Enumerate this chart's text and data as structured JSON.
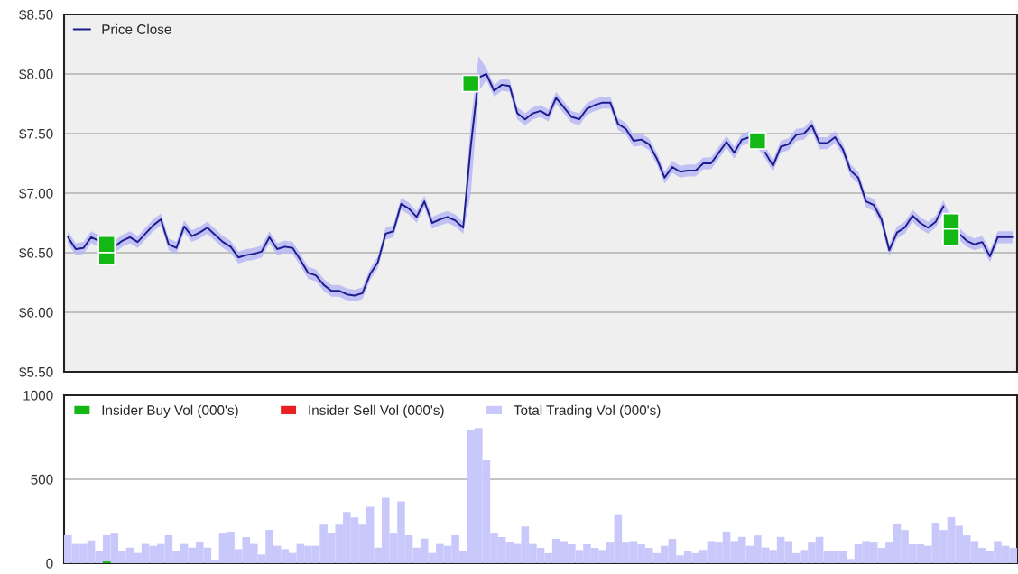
{
  "chart_data": [
    {
      "type": "line",
      "categories": [
        null,
        null,
        null,
        null,
        null,
        null,
        null,
        null,
        null,
        null,
        null,
        null,
        null,
        null,
        null,
        null,
        null,
        null,
        null,
        null,
        null,
        null,
        null,
        null,
        null,
        null,
        null,
        null,
        null,
        null,
        null,
        null,
        null,
        null,
        null,
        null,
        null,
        null,
        null,
        null,
        null,
        null,
        null,
        null,
        null,
        null,
        null,
        null,
        null,
        null,
        null,
        null,
        null,
        null,
        null,
        null,
        null,
        null,
        null,
        null,
        null,
        null,
        null,
        null,
        null,
        null,
        null,
        null,
        null,
        null,
        null,
        null,
        null,
        null,
        null,
        null,
        null,
        null,
        null,
        null,
        null,
        null,
        null,
        null,
        null,
        null,
        null,
        null,
        null,
        null,
        null,
        null,
        null,
        null,
        null,
        null,
        null,
        null,
        null,
        null,
        null,
        null,
        null,
        null,
        null,
        null,
        null,
        null,
        null,
        null,
        null,
        null,
        null,
        null,
        null,
        null,
        null,
        null,
        null,
        null,
        null,
        null,
        null
      ],
      "series": [
        {
          "name": "Price Close",
          "color": "#1c1c8c",
          "type": "line",
          "values": [
            6.63,
            6.53,
            6.54,
            6.63,
            6.6,
            null,
            6.55,
            6.6,
            6.63,
            6.59,
            6.66,
            6.73,
            6.78,
            6.57,
            6.54,
            6.72,
            6.64,
            6.67,
            6.71,
            6.65,
            6.59,
            6.55,
            6.46,
            6.48,
            6.49,
            6.51,
            6.63,
            6.53,
            6.55,
            6.54,
            6.44,
            6.33,
            6.31,
            6.23,
            6.18,
            6.18,
            6.15,
            6.14,
            6.16,
            6.32,
            6.42,
            6.66,
            6.68,
            6.91,
            6.87,
            6.8,
            6.93,
            6.75,
            6.78,
            6.8,
            6.77,
            6.71,
            7.4,
            7.97,
            8.0,
            7.86,
            7.91,
            7.9,
            7.67,
            7.62,
            7.67,
            7.69,
            7.65,
            7.8,
            7.72,
            7.64,
            7.62,
            7.71,
            7.74,
            7.76,
            7.76,
            7.58,
            7.54,
            7.44,
            7.45,
            7.41,
            7.29,
            7.13,
            7.22,
            7.18,
            7.19,
            7.19,
            7.25,
            7.25,
            7.34,
            7.43,
            7.34,
            7.45,
            7.47,
            null,
            7.34,
            7.23,
            7.39,
            7.41,
            7.49,
            7.5,
            7.57,
            7.42,
            7.42,
            7.47,
            7.37,
            7.19,
            7.13,
            6.93,
            6.9,
            6.78,
            6.52,
            6.67,
            6.71,
            6.81,
            6.75,
            6.71,
            6.76,
            6.89,
            null,
            6.66,
            6.6,
            6.57,
            6.59,
            6.47,
            6.63,
            6.63,
            6.63
          ],
          "upper": [
            6.68,
            6.58,
            6.59,
            6.68,
            6.65,
            6.6,
            6.6,
            6.65,
            6.68,
            6.64,
            6.71,
            6.78,
            6.83,
            6.62,
            6.59,
            6.77,
            6.69,
            6.72,
            6.76,
            6.7,
            6.64,
            6.6,
            6.51,
            6.53,
            6.54,
            6.56,
            6.68,
            6.58,
            6.6,
            6.59,
            6.49,
            6.38,
            6.36,
            6.28,
            6.23,
            6.23,
            6.2,
            6.19,
            6.21,
            6.37,
            6.47,
            6.71,
            6.73,
            6.96,
            6.92,
            6.85,
            6.98,
            6.8,
            6.83,
            6.85,
            6.82,
            6.76,
            7.6,
            8.15,
            8.05,
            7.91,
            7.96,
            7.95,
            7.72,
            7.67,
            7.72,
            7.74,
            7.7,
            7.85,
            7.77,
            7.69,
            7.67,
            7.76,
            7.79,
            7.81,
            7.81,
            7.63,
            7.59,
            7.49,
            7.5,
            7.46,
            7.34,
            7.18,
            7.27,
            7.23,
            7.24,
            7.24,
            7.3,
            7.3,
            7.39,
            7.48,
            7.39,
            7.5,
            7.52,
            7.48,
            7.39,
            7.28,
            7.44,
            7.46,
            7.54,
            7.55,
            7.62,
            7.47,
            7.47,
            7.52,
            7.42,
            7.24,
            7.18,
            6.98,
            6.95,
            6.83,
            6.57,
            6.72,
            6.76,
            6.86,
            6.8,
            6.76,
            6.81,
            6.94,
            6.79,
            6.71,
            6.65,
            6.62,
            6.64,
            6.52,
            6.68,
            6.68,
            6.68
          ],
          "lower": [
            6.58,
            6.48,
            6.49,
            6.58,
            6.55,
            6.5,
            6.5,
            6.55,
            6.58,
            6.54,
            6.61,
            6.68,
            6.73,
            6.52,
            6.49,
            6.67,
            6.59,
            6.62,
            6.66,
            6.6,
            6.54,
            6.5,
            6.41,
            6.43,
            6.44,
            6.46,
            6.58,
            6.48,
            6.5,
            6.49,
            6.39,
            6.28,
            6.26,
            6.18,
            6.13,
            6.13,
            6.1,
            6.09,
            6.11,
            6.27,
            6.37,
            6.61,
            6.63,
            6.86,
            6.82,
            6.75,
            6.88,
            6.7,
            6.73,
            6.75,
            6.72,
            6.66,
            7.0,
            7.85,
            7.95,
            7.81,
            7.86,
            7.85,
            7.62,
            7.57,
            7.62,
            7.64,
            7.6,
            7.75,
            7.67,
            7.59,
            7.57,
            7.66,
            7.69,
            7.71,
            7.71,
            7.53,
            7.49,
            7.39,
            7.4,
            7.36,
            7.24,
            7.08,
            7.17,
            7.13,
            7.14,
            7.14,
            7.2,
            7.2,
            7.29,
            7.38,
            7.29,
            7.4,
            7.42,
            7.38,
            7.29,
            7.18,
            7.34,
            7.36,
            7.44,
            7.45,
            7.52,
            7.37,
            7.37,
            7.42,
            7.32,
            7.14,
            7.08,
            6.88,
            6.85,
            6.73,
            6.47,
            6.62,
            6.66,
            6.76,
            6.7,
            6.66,
            6.71,
            6.84,
            6.69,
            6.61,
            6.55,
            6.52,
            6.54,
            6.42,
            6.58,
            6.58,
            6.58
          ]
        },
        {
          "type": "scatter",
          "marker": "square",
          "color": "#14b814",
          "values": [
            null,
            null,
            null,
            null,
            null,
            6.47,
            null,
            null,
            null,
            null,
            null,
            null,
            null,
            null,
            null,
            null,
            null,
            null,
            null,
            null,
            null,
            null,
            null,
            null,
            null,
            null,
            null,
            null,
            null,
            null,
            null,
            null,
            null,
            null,
            null,
            null,
            null,
            null,
            null,
            null,
            null,
            null,
            null,
            null,
            null,
            null,
            null,
            null,
            null,
            null,
            null,
            null,
            null,
            null,
            null,
            null,
            null,
            null,
            null,
            null,
            null,
            null,
            null,
            null,
            null,
            null,
            null,
            null,
            null,
            null,
            null,
            null,
            null,
            null,
            null,
            null,
            null,
            null,
            null,
            null,
            null,
            null,
            null,
            null,
            null,
            null,
            null,
            null,
            null,
            null,
            null,
            null,
            null,
            null,
            null,
            null,
            null,
            null,
            null,
            null,
            null,
            null,
            null,
            null,
            null,
            null,
            null,
            null,
            null,
            null,
            null,
            null,
            null,
            null,
            6.76,
            null,
            null,
            null,
            null,
            null,
            null,
            null,
            null
          ]
        },
        {
          "type": "scatter",
          "marker": "square",
          "color": "#14b814",
          "values": [
            null,
            null,
            null,
            null,
            null,
            6.57,
            null,
            null,
            null,
            null,
            null,
            null,
            null,
            null,
            null,
            null,
            null,
            null,
            null,
            null,
            null,
            null,
            null,
            null,
            null,
            null,
            null,
            null,
            null,
            null,
            null,
            null,
            null,
            null,
            null,
            null,
            null,
            null,
            null,
            null,
            null,
            null,
            null,
            null,
            null,
            null,
            null,
            null,
            null,
            null,
            null,
            null,
            7.92,
            null,
            null,
            null,
            null,
            null,
            null,
            null,
            null,
            null,
            null,
            null,
            null,
            null,
            null,
            null,
            null,
            null,
            null,
            null,
            null,
            null,
            null,
            null,
            null,
            null,
            null,
            null,
            null,
            null,
            null,
            null,
            null,
            null,
            null,
            null,
            null,
            7.44,
            null,
            null,
            null,
            null,
            null,
            null,
            null,
            null,
            null,
            null,
            null,
            null,
            null,
            null,
            null,
            null,
            null,
            null,
            null,
            null,
            null,
            null,
            null,
            null,
            6.63,
            null,
            null,
            null,
            null,
            null,
            null,
            null,
            null
          ]
        }
      ],
      "ylim": [
        5.5,
        8.5
      ],
      "yticks": [
        {
          "value": 5.5,
          "label": "$5.50"
        },
        {
          "value": 6.0,
          "label": "$6.00"
        },
        {
          "value": 6.5,
          "label": "$6.50"
        },
        {
          "value": 7.0,
          "label": "$7.00"
        },
        {
          "value": 7.5,
          "label": "$7.50"
        },
        {
          "value": 8.0,
          "label": "$8.00"
        },
        {
          "value": 8.5,
          "label": "$8.50"
        }
      ],
      "tick_labels": "y",
      "grid": "y",
      "legend": "top left"
    },
    {
      "type": "bar",
      "categories": [
        null,
        null,
        null,
        null,
        null,
        null,
        null,
        null,
        null,
        null,
        null,
        null,
        null,
        null,
        null,
        null,
        null,
        null,
        null,
        null,
        null,
        null,
        null,
        null,
        null,
        null,
        null,
        null,
        null,
        null,
        null,
        null,
        null,
        null,
        null,
        null,
        null,
        null,
        null,
        null,
        null,
        null,
        null,
        null,
        null,
        null,
        null,
        null,
        null,
        null,
        null,
        null,
        null,
        null,
        null,
        null,
        null,
        null,
        null,
        null,
        null,
        null,
        null,
        null,
        null,
        null,
        null,
        null,
        null,
        null,
        null,
        null,
        null,
        null,
        null,
        null,
        null,
        null,
        null,
        null,
        null,
        null,
        null,
        null,
        null,
        null,
        null,
        null,
        null,
        null,
        null,
        null,
        null,
        null,
        null,
        null,
        null,
        null,
        null,
        null,
        null,
        null,
        null,
        null,
        null,
        null,
        null,
        null,
        null,
        null,
        null,
        null,
        null,
        null,
        null,
        null,
        null,
        null,
        null,
        null,
        null,
        null,
        null
      ],
      "series": [
        {
          "name": "Insider Buy Vol (000's)",
          "color": "#14b814",
          "values": [
            0,
            0,
            0,
            0,
            0,
            10,
            0,
            0,
            0,
            0,
            0,
            0,
            0,
            0,
            0,
            0,
            0,
            0,
            0,
            0,
            0,
            0,
            0,
            0,
            0,
            0,
            0,
            0,
            0,
            0,
            0,
            0,
            0,
            0,
            0,
            0,
            0,
            0,
            0,
            0,
            0,
            0,
            0,
            0,
            0,
            0,
            0,
            0,
            0,
            0,
            0,
            0,
            0,
            0,
            0,
            0,
            0,
            0,
            0,
            0,
            0,
            0,
            0,
            0,
            0,
            0,
            0,
            0,
            0,
            0,
            0,
            0,
            0,
            0,
            0,
            0,
            0,
            0,
            0,
            0,
            0,
            0,
            0,
            0,
            0,
            0,
            0,
            0,
            0,
            0,
            0,
            0,
            0,
            0,
            0,
            0,
            0,
            0,
            0,
            0,
            0,
            0,
            0,
            0,
            0,
            0,
            0,
            0,
            0,
            0,
            0,
            0,
            0,
            0,
            0,
            0,
            0,
            0,
            0,
            0,
            0,
            0,
            0
          ]
        },
        {
          "name": "Insider Sell Vol (000's)",
          "color": "#e82020",
          "values": [
            0,
            0,
            0,
            0,
            0,
            0,
            0,
            0,
            0,
            0,
            0,
            0,
            0,
            0,
            0,
            0,
            0,
            0,
            0,
            0,
            0,
            0,
            0,
            0,
            0,
            0,
            0,
            0,
            0,
            0,
            0,
            0,
            0,
            0,
            0,
            0,
            0,
            0,
            0,
            0,
            0,
            0,
            0,
            0,
            0,
            0,
            0,
            0,
            0,
            0,
            0,
            0,
            0,
            0,
            0,
            0,
            0,
            0,
            0,
            0,
            0,
            0,
            0,
            0,
            0,
            0,
            0,
            0,
            0,
            0,
            0,
            0,
            0,
            0,
            0,
            0,
            0,
            0,
            0,
            0,
            0,
            0,
            0,
            0,
            0,
            0,
            0,
            0,
            0,
            0,
            0,
            0,
            0,
            0,
            0,
            0,
            0,
            0,
            0,
            0,
            0,
            0,
            0,
            0,
            0,
            0,
            0,
            0,
            0,
            0,
            0,
            0,
            0,
            0,
            0,
            0,
            0,
            0,
            0,
            0,
            0,
            0,
            0
          ]
        },
        {
          "name": "Total Trading Vol (000's)",
          "color": "#c8c8fa",
          "values": [
            167,
            115,
            115,
            136,
            72,
            167,
            177,
            72,
            93,
            61,
            115,
            104,
            115,
            167,
            72,
            115,
            93,
            125,
            93,
            19,
            177,
            188,
            84,
            156,
            115,
            52,
            199,
            104,
            84,
            61,
            115,
            104,
            104,
            230,
            177,
            230,
            305,
            273,
            230,
            336,
            93,
            390,
            177,
            368,
            167,
            93,
            147,
            61,
            115,
            104,
            167,
            72,
            795,
            805,
            613,
            177,
            156,
            125,
            115,
            219,
            115,
            91,
            60,
            145,
            132,
            113,
            79,
            113,
            91,
            79,
            123,
            287,
            123,
            132,
            113,
            91,
            60,
            104,
            145,
            47,
            70,
            60,
            79,
            132,
            123,
            189,
            132,
            157,
            104,
            166,
            94,
            79,
            157,
            132,
            60,
            79,
            123,
            157,
            70,
            70,
            70,
            25,
            113,
            132,
            123,
            91,
            123,
            232,
            198,
            113,
            113,
            104,
            242,
            198,
            274,
            223,
            166,
            132,
            91,
            70,
            132,
            104,
            91
          ]
        }
      ],
      "ylim": [
        0,
        1000
      ],
      "yticks": [
        0,
        500,
        1000
      ],
      "tick_labels": "y",
      "grid": "y",
      "legend": "top left"
    }
  ]
}
